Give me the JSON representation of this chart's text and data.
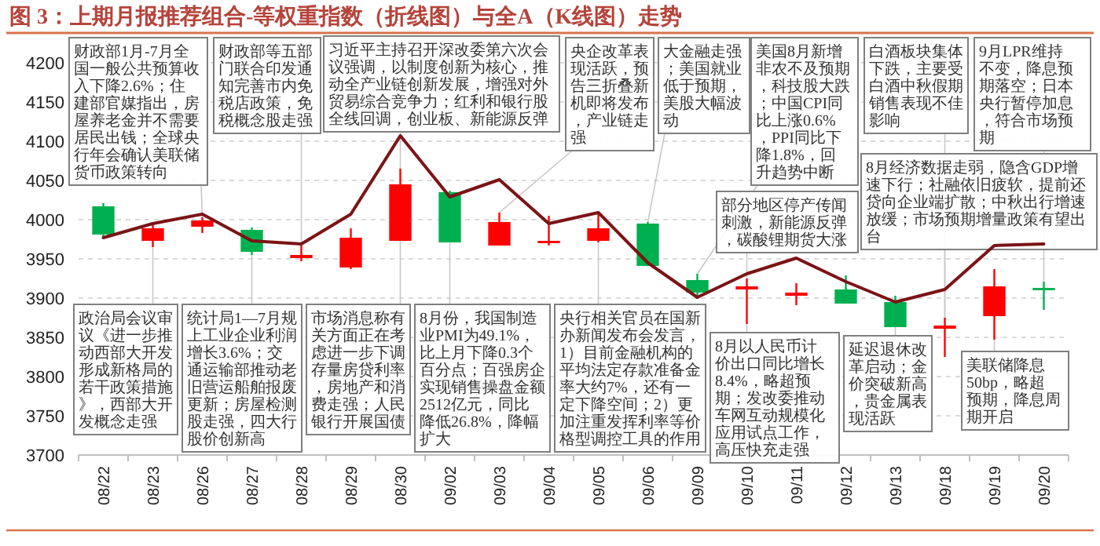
{
  "chart_data": {
    "type": "candlestick",
    "title": "图 3：上期月报推荐组合-等权重指数（折线图）与全A（K线图）走势",
    "categories": [
      "08/22",
      "08/23",
      "08/26",
      "08/27",
      "08/28",
      "08/29",
      "08/30",
      "09/02",
      "09/03",
      "09/04",
      "09/05",
      "09/06",
      "09/09",
      "09/10",
      "09/11",
      "09/12",
      "09/13",
      "09/18",
      "09/19",
      "09/20"
    ],
    "ohlc": [
      [
        4017,
        4021,
        3978,
        3981
      ],
      [
        3973,
        3997,
        3965,
        3989
      ],
      [
        3991,
        4003,
        3983,
        3999
      ],
      [
        3987,
        3990,
        3955,
        3959
      ],
      [
        3951,
        3967,
        3947,
        3955
      ],
      [
        3939,
        3989,
        3937,
        3977
      ],
      [
        3973,
        4065,
        3973,
        4045
      ],
      [
        4035,
        4037,
        3971,
        3971
      ],
      [
        3967,
        4009,
        3967,
        3997
      ],
      [
        3971,
        4005,
        3967,
        3973
      ],
      [
        3973,
        4007,
        3971,
        3989
      ],
      [
        3995,
        3997,
        3941,
        3941
      ],
      [
        3923,
        3931,
        3899,
        3907
      ],
      [
        3911,
        3925,
        3867,
        3915
      ],
      [
        3903,
        3919,
        3891,
        3907
      ],
      [
        3911,
        3929,
        3893,
        3893
      ],
      [
        3895,
        3903,
        3863,
        3863
      ],
      [
        3861,
        3875,
        3825,
        3865
      ],
      [
        3877,
        3937,
        3847,
        3915
      ],
      [
        3913,
        3921,
        3885,
        3911
      ]
    ],
    "colors": [
      "#00b050",
      "#ff0000",
      "#ff0000",
      "#00b050",
      "#ff0000",
      "#ff0000",
      "#ff0000",
      "#00b050",
      "#ff0000",
      "#ff0000",
      "#ff0000",
      "#00b050",
      "#00b050",
      "#ff0000",
      "#ff0000",
      "#00b050",
      "#00b050",
      "#ff0000",
      "#ff0000",
      "#00b050"
    ],
    "series": [
      {
        "type": "line",
        "color": "#7b1416",
        "values": [
          3977,
          3995,
          4007,
          3973,
          3969,
          4007,
          4107,
          4029,
          4051,
          3995,
          4009,
          3945,
          3901,
          3931,
          3951,
          3921,
          3895,
          3911,
          3967,
          3969
        ]
      }
    ],
    "ylim": [
      3700,
      4200
    ],
    "yticks": [
      3700,
      3750,
      3800,
      3850,
      3900,
      3950,
      4000,
      4050,
      4100,
      4150,
      4200
    ],
    "grid": "y",
    "annotations": [
      {
        "text": "财政部1月-7月全国一般公共预算收入下降2.6%；住建部官媒指出，房屋养老金并不需要居民出钱；全球央行年会确认美联储货币政策转向",
        "x": "08/26",
        "y": 4003
      },
      {
        "text": "财政部等五部门联合印发通知完善市内免税店政策，免税概念股走强",
        "x": "08/28",
        "y": 3967
      },
      {
        "text": "习近平主持召开深改委第六次会议强调，以制度创新为核心，推动全产业链创新发展，增强对外贸易综合竞争力；红利和银行股全线回调，创业板、新能源反弹",
        "x": "08/30",
        "y": 4065
      },
      {
        "text": "央企改革表现活跃，预告三折叠新机即将发布，产业链走强",
        "x": "09/03",
        "y": 4009
      },
      {
        "text": "大金融走强；美国就业低于预期，美股大幅波动",
        "x": "09/06",
        "y": 3997
      },
      {
        "text": "美国8月新增非农不及预期，科技股大跌；中国CPI同比上涨0.6%，PPI同比下降1.8%，回升趋势中断",
        "x": "09/09",
        "y": 3931
      },
      {
        "text": "白酒板块集体下跌，主要受白酒中秋假期销售表现不佳影响",
        "x": "09/18",
        "y": 3875
      },
      {
        "text": "9月LPR维持不变，降息预期落空；日本央行暂停加息，符合市场预期",
        "x": "09/20",
        "y": 3921
      },
      {
        "text": "8月经济数据走弱，隐含GDP增速下行；社融依旧疲软，提前还贷向企业端扩散；中秋出行增速放缓；市场预期增量政策有望出台",
        "x": "09/18",
        "y": 3875
      },
      {
        "text": "部分地区停产传闻刺激，新能源反弹，碳酸锂期货大涨",
        "x": "09/10",
        "y": 3925
      },
      {
        "text": "政治局会议审议《进一步推动西部大开发形成新格局的若干政策措施》，西部大开发概念走强",
        "x": "08/23",
        "y": 3965
      },
      {
        "text": "统计局1—7月规上工业企业利润增长3.6%；交通运输部推动老旧营运船舶报废更新；房屋检测股走强，四大行股价创新高",
        "x": "08/27",
        "y": 3955
      },
      {
        "text": "市场消息称有关方面正在考虑进一步下调存量房贷利率，房地产和消费走强；人民银行开展国债",
        "x": "08/30",
        "y": 3973
      },
      {
        "text": "8月份，我国制造业PMI为49.1%，比上月下降0.3个百分点；百强房企实现销售操盘金额2512亿元，同比降低26.8%，降幅扩大",
        "x": "09/02",
        "y": 3971
      },
      {
        "text": "央行相关官员在国新办新闻发布会发言，1）目前金融机构的平均法定存款准备金率大约7%，还有一定下降空间；2）更加注重发挥利率等价格型调控工具的作用",
        "x": "09/05",
        "y": 3971
      },
      {
        "text": "8月以人民币计价出口同比增长8.4%，略超预期；发改委推动车网互动规模化应用试点工作，高压快充走强",
        "x": "09/10",
        "y": 3867
      },
      {
        "text": "延迟退休改革启动；金价突破新高，贵金属表现活跃",
        "x": "09/13",
        "y": 3863
      },
      {
        "text": "美联储降息50bp，略超预期，降息周期开启",
        "x": "09/19",
        "y": 3847
      }
    ]
  }
}
